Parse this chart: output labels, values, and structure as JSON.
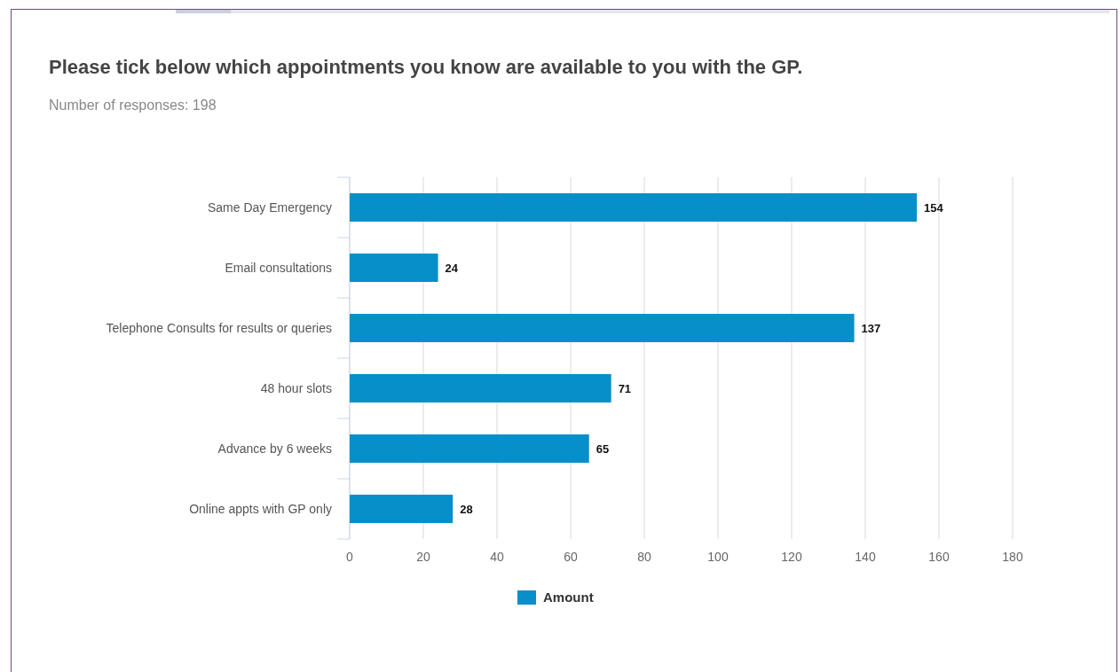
{
  "chart_data": {
    "type": "bar",
    "orientation": "horizontal",
    "title": "Please tick below which appointments you know are available to you with the GP.",
    "subtitle": "Number of responses: 198",
    "categories": [
      "Same Day Emergency",
      "Email consultations",
      "Telephone Consults for results or queries",
      "48 hour slots",
      "Advance by 6 weeks",
      "Online appts with GP only"
    ],
    "series": [
      {
        "name": "Amount",
        "color": "#068fc8",
        "values": [
          154,
          24,
          137,
          71,
          65,
          28
        ]
      }
    ],
    "xlim": [
      0,
      180
    ],
    "xticks": [
      0,
      20,
      40,
      60,
      80,
      100,
      120,
      140,
      160,
      180
    ],
    "grid": "x",
    "legend": "bottom",
    "data_labels": true
  }
}
